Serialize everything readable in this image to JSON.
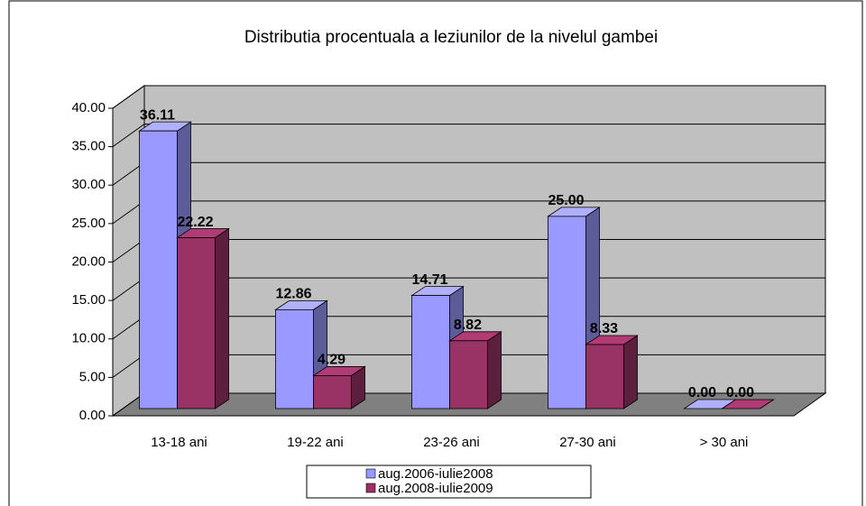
{
  "chart_data": {
    "type": "bar3d",
    "title": "Distributia procentuala a leziunilor de la nivelul gambei",
    "categories": [
      "13-18 ani",
      "19-22 ani",
      "23-26 ani",
      "27-30 ani",
      "> 30 ani"
    ],
    "series": [
      {
        "name": "aug.2006-iulie2008",
        "color": "#9999ff",
        "values": [
          36.11,
          12.86,
          14.71,
          25.0,
          0.0
        ],
        "value_labels": [
          "36.11",
          "12.86",
          "14.71",
          "25.00",
          "0.00"
        ]
      },
      {
        "name": "aug.2008-iulie2009",
        "color": "#993366",
        "values": [
          22.22,
          4.29,
          8.82,
          8.33,
          0.0
        ],
        "value_labels": [
          "22.22",
          "4.29",
          "8.82",
          "8.33",
          "0.00"
        ]
      }
    ],
    "ylim": [
      0,
      40
    ],
    "yticks": [
      {
        "value": 0,
        "label": "0.00"
      },
      {
        "value": 5,
        "label": "5.00"
      },
      {
        "value": 10,
        "label": "10.00"
      },
      {
        "value": 15,
        "label": "15.00"
      },
      {
        "value": 20,
        "label": "20.00"
      },
      {
        "value": 25,
        "label": "25.00"
      },
      {
        "value": 30,
        "label": "30.00"
      },
      {
        "value": 35,
        "label": "35.00"
      },
      {
        "value": 40,
        "label": "40.00"
      }
    ],
    "grid": true,
    "legend": "bottom"
  }
}
